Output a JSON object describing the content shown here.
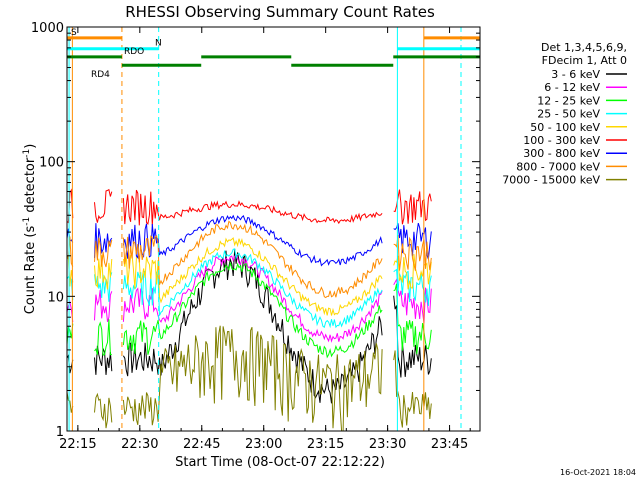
{
  "chart_data": {
    "type": "line",
    "title": "RHESSI Observing Summary Count Rates",
    "xlabel": "Start Time (08-Oct-07 22:12:22)",
    "ylabel": "Count Rate (s",
    "ylabel_sup1": "-1",
    "ylabel_mid": " detector",
    "ylabel_sup2": "-1",
    "ylabel_end": ")",
    "y_scale": "log",
    "ylim": [
      1,
      1000
    ],
    "xlim_minutes": [
      0,
      100
    ],
    "x_ticks": [
      {
        "minutes": 2.63,
        "label": "22:15"
      },
      {
        "minutes": 17.63,
        "label": "22:30"
      },
      {
        "minutes": 32.63,
        "label": "22:45"
      },
      {
        "minutes": 47.63,
        "label": "23:00"
      },
      {
        "minutes": 62.63,
        "label": "23:15"
      },
      {
        "minutes": 77.63,
        "label": "23:30"
      },
      {
        "minutes": 92.63,
        "label": "23:45"
      }
    ],
    "y_ticks": [
      {
        "value": 1,
        "label": "1"
      },
      {
        "value": 10,
        "label": "10"
      },
      {
        "value": 100,
        "label": "100"
      },
      {
        "value": 1000,
        "label": "1000"
      }
    ],
    "legend_header": [
      "Det 1,3,4,5,6,9,",
      "FDecim 1, Att 0"
    ],
    "legend_position": "right",
    "series": [
      {
        "name": "3 - 6 keV",
        "color": "#000000",
        "base": 6.0,
        "amp": 4.0,
        "night": 3.5,
        "jitter": 0.13
      },
      {
        "name": "6 - 12 keV",
        "color": "#ff00ff",
        "base": 9.8,
        "amp": 2.0,
        "night": 9.0,
        "jitter": 0.05
      },
      {
        "name": "12 - 25 keV",
        "color": "#00ff00",
        "base": 8.2,
        "amp": 2.2,
        "night": 5.2,
        "jitter": 0.05
      },
      {
        "name": "25 - 50 keV",
        "color": "#00ffff",
        "base": 11.5,
        "amp": 1.65,
        "night": 12.0,
        "jitter": 0.04
      },
      {
        "name": "50 - 100 keV",
        "color": "#ffd700",
        "base": 14.0,
        "amp": 1.6,
        "night": 16.0,
        "jitter": 0.04
      },
      {
        "name": "100 - 300 keV",
        "color": "#ff0000",
        "base": 42.0,
        "amp": 0.3,
        "night": 48.0,
        "jitter": 0.03
      },
      {
        "name": "300 - 800 keV",
        "color": "#0000ff",
        "base": 26.0,
        "amp": 0.95,
        "night": 27.0,
        "jitter": 0.03
      },
      {
        "name": "800 - 7000 keV",
        "color": "#ff8c00",
        "base": 19.0,
        "amp": 1.6,
        "night": 22.0,
        "jitter": 0.04
      },
      {
        "name": "7000 - 15000 keV",
        "color": "#808000",
        "base": 3.0,
        "amp": 0.6,
        "night": 1.5,
        "jitter": 0.3
      }
    ],
    "flags": [
      {
        "label": "S",
        "color": "#ff8c00",
        "level": 830
      },
      {
        "label": "N",
        "color": "#00ffff",
        "level": 690
      },
      {
        "label": "RDO",
        "color": "#008000",
        "level": 600
      },
      {
        "label": "RD4",
        "color": "#008000",
        "level": 520
      }
    ],
    "intervals": {
      "saa": [
        [
          0,
          13.3
        ],
        [
          86.4,
          100
        ]
      ],
      "night": [
        [
          0,
          22.2
        ],
        [
          80.0,
          100
        ]
      ],
      "data_gaps": [
        [
          1.6,
          6.4
        ],
        [
          11.0,
          13.3
        ],
        [
          76.5,
          79.0
        ],
        [
          88.5,
          100
        ]
      ]
    },
    "vertical_markers": [
      {
        "minutes": 13.3,
        "color": "#ff8c00",
        "style": "dashed"
      },
      {
        "minutes": 22.2,
        "color": "#00ffff",
        "style": "dashed"
      },
      {
        "minutes": 80.0,
        "color": "#00ffff",
        "style": "solid"
      },
      {
        "minutes": 86.4,
        "color": "#ff8c00",
        "style": "solid"
      },
      {
        "minutes": 95.4,
        "color": "#00ffff",
        "style": "dashed"
      },
      {
        "minutes": 1.3,
        "color": "#ff8c00",
        "style": "solid"
      },
      {
        "minutes": 0.5,
        "color": "#00ffff",
        "style": "solid"
      }
    ],
    "timestamp": "16-Oct-2021 18:04"
  }
}
